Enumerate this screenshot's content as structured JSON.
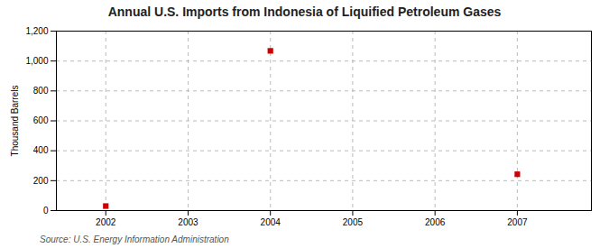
{
  "chart_data": {
    "type": "scatter",
    "title": "Annual U.S. Imports from Indonesia of Liquified Petroleum Gases",
    "ylabel": "Thousand Barrels",
    "annotations": [
      "Source: U.S. Energy Information Administration"
    ],
    "x": [
      2002,
      2004,
      2007
    ],
    "values": [
      30,
      1068,
      243
    ],
    "color": "#CC0000",
    "marker": "square",
    "xlim": [
      2001.4,
      2007.9
    ],
    "ylim": [
      0,
      1200
    ],
    "xticks": [
      2002,
      2003,
      2004,
      2005,
      2006,
      2007
    ],
    "yticks": [
      0,
      200,
      400,
      600,
      800,
      {
        "value": 1000,
        "label": "1,000"
      },
      {
        "value": 1200,
        "label": "1,200"
      }
    ],
    "grid": true
  }
}
